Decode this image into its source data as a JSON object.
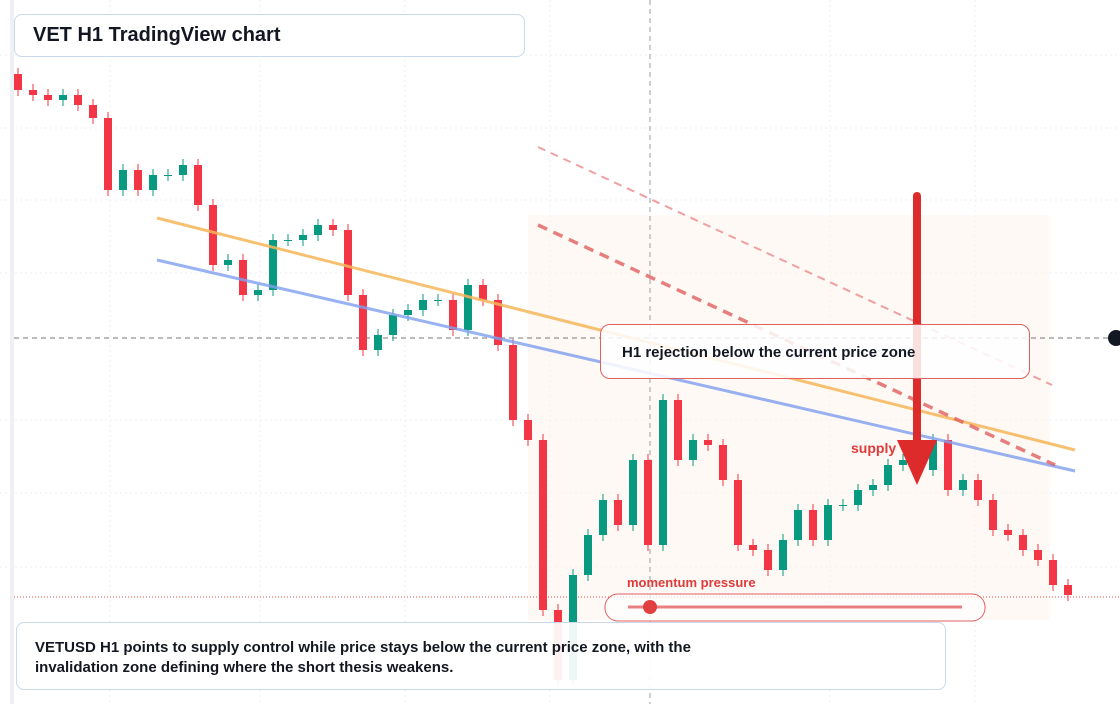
{
  "chart_data": {
    "type": "candlestick",
    "title": "VET H1 TradingView chart",
    "callout": "H1 rejection below the current price zone",
    "supply_label": "supply",
    "momentum_label": "momentum pressure",
    "caption": "VETUSD H1 points to supply control while price stays below the current price zone, with the invalidation zone defining where the short thesis weakens.",
    "ylim": [
      0,
      704
    ],
    "up_color": "#089981",
    "down_color": "#f23645",
    "open": [
      630,
      614,
      609,
      604,
      609,
      599,
      586,
      514,
      534,
      514,
      529,
      529,
      539,
      499,
      439,
      444,
      409,
      414,
      464,
      464,
      469,
      479,
      474,
      409,
      354,
      369,
      389,
      394,
      404,
      404,
      374,
      419,
      404,
      359,
      284,
      264,
      94,
      24,
      129,
      169,
      204,
      179,
      244,
      159,
      304,
      244,
      264,
      259,
      224,
      159,
      154,
      134,
      164,
      194,
      164,
      199,
      199,
      214,
      219,
      239,
      244,
      234,
      264,
      214,
      224,
      204,
      174,
      169,
      154,
      144,
      119
    ],
    "high": [
      636,
      620,
      615,
      615,
      615,
      605,
      592,
      540,
      540,
      535,
      535,
      545,
      545,
      505,
      450,
      450,
      420,
      470,
      470,
      475,
      485,
      485,
      480,
      415,
      375,
      395,
      400,
      410,
      410,
      410,
      425,
      425,
      410,
      365,
      290,
      270,
      100,
      135,
      175,
      210,
      210,
      250,
      250,
      310,
      310,
      270,
      270,
      265,
      230,
      165,
      160,
      170,
      200,
      200,
      205,
      205,
      220,
      225,
      245,
      250,
      250,
      270,
      270,
      230,
      230,
      210,
      180,
      175,
      160,
      150,
      125
    ],
    "low": [
      608,
      603,
      598,
      598,
      593,
      580,
      508,
      508,
      508,
      508,
      523,
      523,
      493,
      433,
      433,
      403,
      403,
      408,
      458,
      458,
      463,
      468,
      403,
      348,
      348,
      363,
      383,
      388,
      398,
      368,
      368,
      398,
      353,
      278,
      258,
      88,
      18,
      18,
      123,
      163,
      173,
      173,
      153,
      153,
      238,
      238,
      253,
      218,
      153,
      148,
      128,
      128,
      158,
      158,
      158,
      193,
      193,
      208,
      213,
      233,
      228,
      228,
      208,
      208,
      198,
      168,
      163,
      148,
      138,
      113,
      103
    ],
    "close": [
      614,
      609,
      604,
      609,
      599,
      586,
      514,
      534,
      514,
      529,
      529,
      539,
      499,
      439,
      444,
      409,
      414,
      464,
      464,
      469,
      479,
      474,
      409,
      354,
      369,
      389,
      394,
      404,
      404,
      374,
      419,
      404,
      359,
      284,
      264,
      94,
      24,
      129,
      169,
      204,
      179,
      244,
      159,
      304,
      244,
      264,
      259,
      224,
      159,
      154,
      134,
      164,
      194,
      164,
      199,
      199,
      214,
      219,
      239,
      244,
      234,
      264,
      214,
      224,
      204,
      174,
      169,
      154,
      144,
      119,
      109
    ]
  }
}
